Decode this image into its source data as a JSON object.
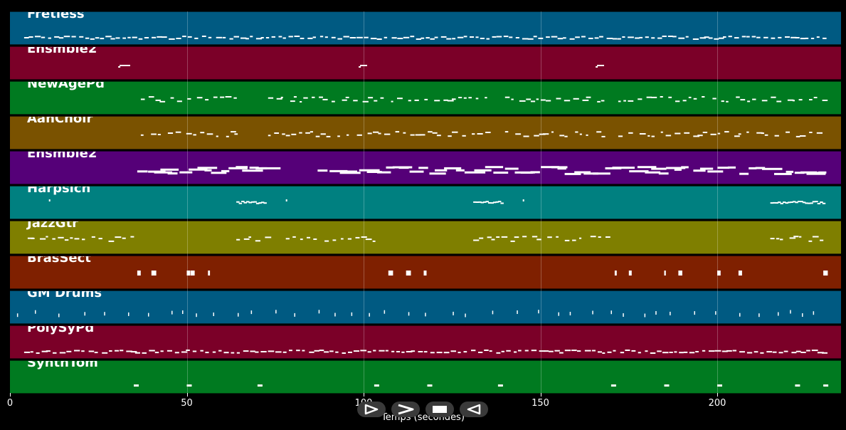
{
  "tracks": [
    {
      "name": "Fretless",
      "color": "#005a82",
      "pattern": "dense-dots"
    },
    {
      "name": "Ensmble2",
      "color": "#7b0028",
      "pattern": "sparse"
    },
    {
      "name": "NewAgePd",
      "color": "#007a20",
      "pattern": "phrases"
    },
    {
      "name": "AahChoir",
      "color": "#7a5200",
      "pattern": "phrases"
    },
    {
      "name": "Ensmble2",
      "color": "#550078",
      "pattern": "bars"
    },
    {
      "name": "Harpsich",
      "color": "#008080",
      "pattern": "sparse-phrase"
    },
    {
      "name": "JazzGtr",
      "color": "#7f7f00",
      "pattern": "phrases"
    },
    {
      "name": "BrasSect",
      "color": "#7f2000",
      "pattern": "hits"
    },
    {
      "name": "GM Drums",
      "color": "#005a82",
      "pattern": "drums"
    },
    {
      "name": "PolySyPd",
      "color": "#7b0028",
      "pattern": "dense-dots"
    },
    {
      "name": "SynthTom",
      "color": "#007a20",
      "pattern": "sparse-low"
    }
  ],
  "x_axis": {
    "label": "Temps (secondes)",
    "min": 0,
    "max": 235,
    "ticks": [
      "0",
      "50",
      "100",
      "150",
      "200"
    ],
    "tick_values": [
      0,
      50,
      100,
      150,
      200
    ]
  },
  "controls": [
    {
      "name": "play-button",
      "icon": "play-icon"
    },
    {
      "name": "next-button",
      "icon": "chevron-right-icon"
    },
    {
      "name": "stop-button",
      "icon": "stop-icon"
    },
    {
      "name": "back-button",
      "icon": "play-reverse-icon"
    }
  ],
  "notes_color": "#ffffff"
}
